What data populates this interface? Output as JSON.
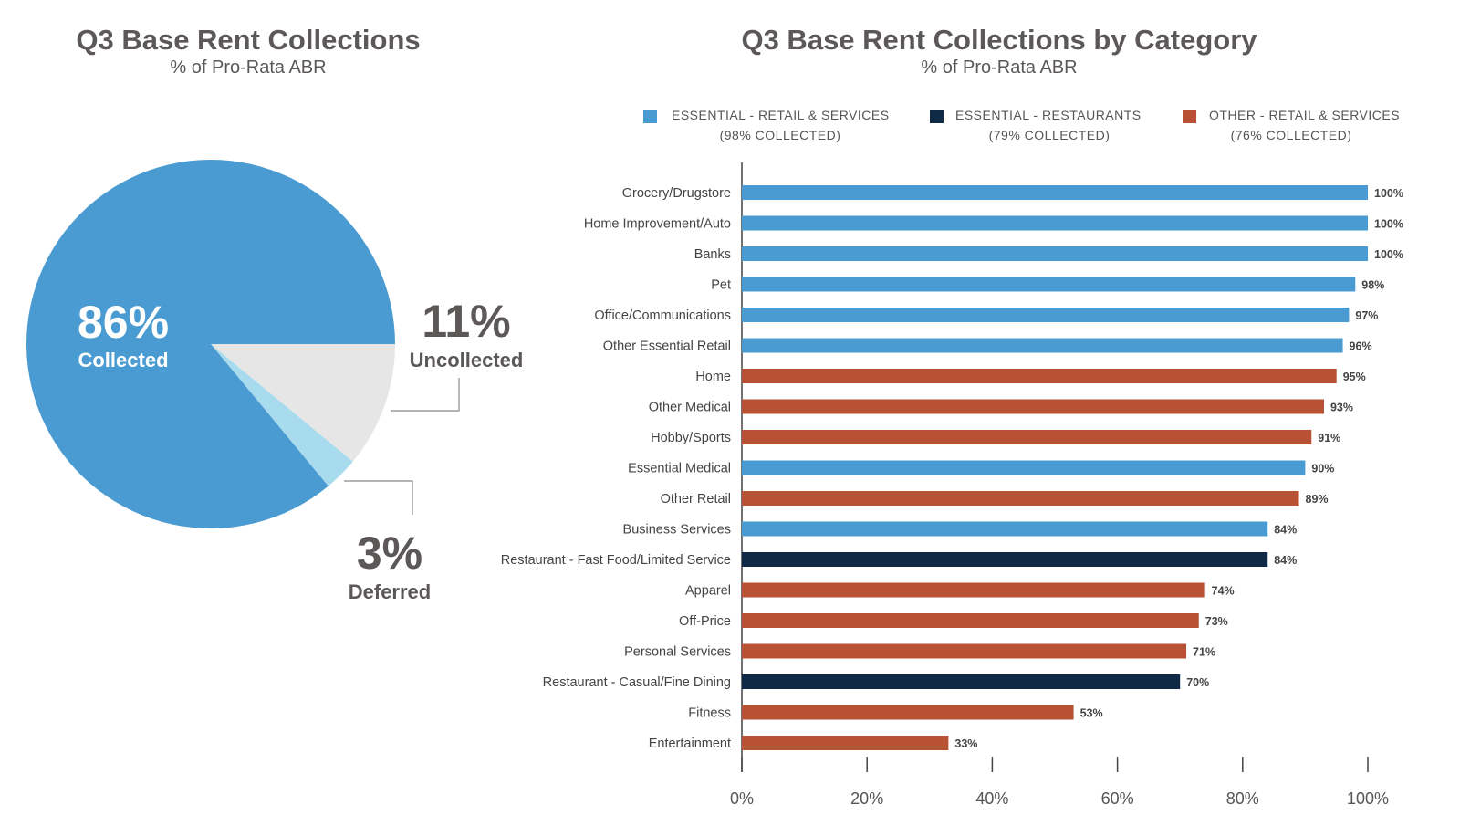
{
  "pie_panel": {
    "title": "Q3 Base Rent Collections",
    "subtitle": "% of Pro-Rata ABR"
  },
  "bar_panel": {
    "title": "Q3 Base Rent Collections by Category",
    "subtitle": "% of Pro-Rata ABR"
  },
  "colors": {
    "essential_retail": "#4a9bd1",
    "essential_restaurants": "#0f2a45",
    "other_retail": "#b75235",
    "collected": "#4a9bd1",
    "deferred": "#a9dbef",
    "uncollected": "#e6e6e6"
  },
  "chart_data": [
    {
      "type": "pie",
      "title": "Q3 Base Rent Collections",
      "subtitle": "% of Pro-Rata ABR",
      "slices": [
        {
          "label": "Collected",
          "value": 86,
          "display": "86%"
        },
        {
          "label": "Deferred",
          "value": 3,
          "display": "3%"
        },
        {
          "label": "Uncollected",
          "value": 11,
          "display": "11%"
        }
      ]
    },
    {
      "type": "bar",
      "orientation": "horizontal",
      "title": "Q3 Base Rent Collections by Category",
      "subtitle": "% of Pro-Rata ABR",
      "xlim": [
        0,
        100
      ],
      "x_ticks": [
        "0%",
        "20%",
        "40%",
        "60%",
        "80%",
        "100%"
      ],
      "legend_position": "top",
      "legend": [
        {
          "key": "essential_retail",
          "label": "ESSENTIAL - RETAIL & SERVICES",
          "note": "(98% COLLECTED)"
        },
        {
          "key": "essential_restaurants",
          "label": "ESSENTIAL - RESTAURANTS",
          "note": "(79% COLLECTED)"
        },
        {
          "key": "other_retail",
          "label": "OTHER - RETAIL & SERVICES",
          "note": "(76% COLLECTED)"
        }
      ],
      "bars": [
        {
          "category": "Grocery/Drugstore",
          "value": 100,
          "label": "100%",
          "group": "essential_retail"
        },
        {
          "category": "Home Improvement/Auto",
          "value": 100,
          "label": "100%",
          "group": "essential_retail"
        },
        {
          "category": "Banks",
          "value": 100,
          "label": "100%",
          "group": "essential_retail"
        },
        {
          "category": "Pet",
          "value": 98,
          "label": "98%",
          "group": "essential_retail"
        },
        {
          "category": "Office/Communications",
          "value": 97,
          "label": "97%",
          "group": "essential_retail"
        },
        {
          "category": "Other Essential Retail",
          "value": 96,
          "label": "96%",
          "group": "essential_retail"
        },
        {
          "category": "Home",
          "value": 95,
          "label": "95%",
          "group": "other_retail"
        },
        {
          "category": "Other Medical",
          "value": 93,
          "label": "93%",
          "group": "other_retail"
        },
        {
          "category": "Hobby/Sports",
          "value": 91,
          "label": "91%",
          "group": "other_retail"
        },
        {
          "category": "Essential Medical",
          "value": 90,
          "label": "90%",
          "group": "essential_retail"
        },
        {
          "category": "Other Retail",
          "value": 89,
          "label": "89%",
          "group": "other_retail"
        },
        {
          "category": "Business Services",
          "value": 84,
          "label": "84%",
          "group": "essential_retail"
        },
        {
          "category": "Restaurant - Fast Food/Limited Service",
          "value": 84,
          "label": "84%",
          "group": "essential_restaurants"
        },
        {
          "category": "Apparel",
          "value": 74,
          "label": "74%",
          "group": "other_retail"
        },
        {
          "category": "Off-Price",
          "value": 73,
          "label": "73%",
          "group": "other_retail"
        },
        {
          "category": "Personal Services",
          "value": 71,
          "label": "71%",
          "group": "other_retail"
        },
        {
          "category": "Restaurant - Casual/Fine Dining",
          "value": 70,
          "label": "70%",
          "group": "essential_restaurants"
        },
        {
          "category": "Fitness",
          "value": 53,
          "label": "53%",
          "group": "other_retail"
        },
        {
          "category": "Entertainment",
          "value": 33,
          "label": "33%",
          "group": "other_retail"
        }
      ]
    }
  ]
}
